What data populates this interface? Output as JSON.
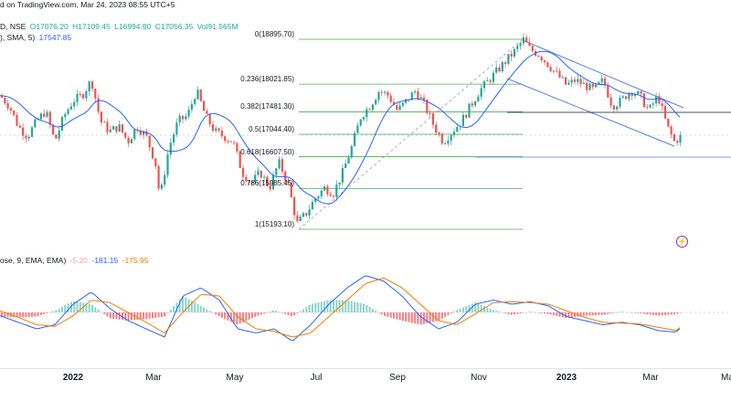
{
  "header": {
    "line1": "d on TradingView.com, Mar 24, 2023 08:55 UTC+5",
    "ohlc": {
      "o": "O17076.20",
      "h": "H17109.45",
      "l": "L16994.90",
      "c": "C17056.35",
      "vol": "Vol91.565M"
    },
    "line2a": "D, NSE",
    "line3": "), SMA, 5)",
    "sma_value": "17547.85",
    "macd_label": "ose, 9, EMA, EMA)",
    "macd_hist": "-5.20",
    "macd_line": "-181.15",
    "macd_signal": "-175.95"
  },
  "colors": {
    "up": "#26a69a",
    "down": "#ef5350",
    "sma": "#2962ff",
    "fib": "#4caf50",
    "channel": "#5b7de8",
    "macd_line": "#2962ff",
    "signal_line": "#f57c00"
  },
  "chart_data": {
    "type": "line",
    "x_ticks": [
      "2022",
      "Mar",
      "May",
      "Jul",
      "Sep",
      "Nov",
      "2023",
      "Mar",
      "Ma"
    ],
    "fib_levels": [
      {
        "label": "0(18895.70)",
        "value": 18895.7
      },
      {
        "label": "0.236(18021.85)",
        "value": 18021.85
      },
      {
        "label": "0.382(17481.30)",
        "value": 17481.3
      },
      {
        "label": "0.5(17044.40)",
        "value": 17044.4
      },
      {
        "label": "0.618(16607.50)",
        "value": 16607.5
      },
      {
        "label": "0.786(15985.45)",
        "value": 15985.45
      },
      {
        "label": "1(15193.10)",
        "value": 15193.1
      }
    ],
    "price_path": [
      [
        0,
        17800
      ],
      [
        10,
        17600
      ],
      [
        20,
        17200
      ],
      [
        30,
        17000
      ],
      [
        40,
        17300
      ],
      [
        50,
        17500
      ],
      [
        60,
        16900
      ],
      [
        70,
        17400
      ],
      [
        80,
        17700
      ],
      [
        90,
        17800
      ],
      [
        100,
        18100
      ],
      [
        110,
        17300
      ],
      [
        120,
        17100
      ],
      [
        130,
        17200
      ],
      [
        140,
        16900
      ],
      [
        150,
        17200
      ],
      [
        160,
        17000
      ],
      [
        170,
        16500
      ],
      [
        175,
        15800
      ],
      [
        185,
        16800
      ],
      [
        195,
        17300
      ],
      [
        205,
        17400
      ],
      [
        215,
        17900
      ],
      [
        225,
        17400
      ],
      [
        235,
        17100
      ],
      [
        245,
        17000
      ],
      [
        255,
        16900
      ],
      [
        265,
        16300
      ],
      [
        275,
        16100
      ],
      [
        285,
        16300
      ],
      [
        295,
        16000
      ],
      [
        305,
        16500
      ],
      [
        315,
        16100
      ],
      [
        325,
        15300
      ],
      [
        335,
        15500
      ],
      [
        345,
        15800
      ],
      [
        355,
        16000
      ],
      [
        365,
        15900
      ],
      [
        375,
        16300
      ],
      [
        385,
        16800
      ],
      [
        395,
        17400
      ],
      [
        405,
        17600
      ],
      [
        415,
        17900
      ],
      [
        425,
        17800
      ],
      [
        435,
        17500
      ],
      [
        445,
        17700
      ],
      [
        455,
        17900
      ],
      [
        465,
        17600
      ],
      [
        475,
        17200
      ],
      [
        485,
        16900
      ],
      [
        495,
        17100
      ],
      [
        505,
        17300
      ],
      [
        515,
        17600
      ],
      [
        525,
        17900
      ],
      [
        535,
        18100
      ],
      [
        545,
        18300
      ],
      [
        555,
        18500
      ],
      [
        565,
        18700
      ],
      [
        573,
        18890
      ],
      [
        580,
        18700
      ],
      [
        590,
        18600
      ],
      [
        600,
        18400
      ],
      [
        610,
        18200
      ],
      [
        620,
        18000
      ],
      [
        630,
        18100
      ],
      [
        640,
        18000
      ],
      [
        650,
        17900
      ],
      [
        660,
        18100
      ],
      [
        670,
        17600
      ],
      [
        680,
        17700
      ],
      [
        690,
        17900
      ],
      [
        700,
        17800
      ],
      [
        710,
        17500
      ],
      [
        720,
        17800
      ],
      [
        730,
        17200
      ],
      [
        738,
        16900
      ],
      [
        745,
        17000
      ]
    ],
    "macd": [
      [
        0,
        -40
      ],
      [
        20,
        -120
      ],
      [
        40,
        -200
      ],
      [
        60,
        -150
      ],
      [
        80,
        100
      ],
      [
        100,
        250
      ],
      [
        120,
        50
      ],
      [
        140,
        -100
      ],
      [
        160,
        -200
      ],
      [
        180,
        -300
      ],
      [
        200,
        200
      ],
      [
        220,
        300
      ],
      [
        240,
        150
      ],
      [
        260,
        -200
      ],
      [
        280,
        -250
      ],
      [
        300,
        -200
      ],
      [
        320,
        -350
      ],
      [
        340,
        -150
      ],
      [
        360,
        100
      ],
      [
        380,
        300
      ],
      [
        400,
        450
      ],
      [
        420,
        380
      ],
      [
        440,
        200
      ],
      [
        460,
        -50
      ],
      [
        480,
        -200
      ],
      [
        500,
        -120
      ],
      [
        520,
        100
      ],
      [
        540,
        150
      ],
      [
        560,
        100
      ],
      [
        580,
        130
      ],
      [
        600,
        80
      ],
      [
        620,
        -50
      ],
      [
        640,
        -100
      ],
      [
        660,
        -150
      ],
      [
        680,
        -120
      ],
      [
        700,
        -150
      ],
      [
        720,
        -220
      ],
      [
        740,
        -240
      ],
      [
        745,
        -181
      ]
    ],
    "signal": [
      [
        0,
        20
      ],
      [
        20,
        -60
      ],
      [
        40,
        -150
      ],
      [
        60,
        -170
      ],
      [
        80,
        -40
      ],
      [
        100,
        150
      ],
      [
        120,
        120
      ],
      [
        140,
        0
      ],
      [
        160,
        -120
      ],
      [
        180,
        -250
      ],
      [
        200,
        0
      ],
      [
        220,
        220
      ],
      [
        240,
        200
      ],
      [
        260,
        -50
      ],
      [
        280,
        -200
      ],
      [
        300,
        -230
      ],
      [
        320,
        -300
      ],
      [
        340,
        -250
      ],
      [
        360,
        -50
      ],
      [
        380,
        150
      ],
      [
        400,
        350
      ],
      [
        420,
        420
      ],
      [
        440,
        300
      ],
      [
        460,
        100
      ],
      [
        480,
        -100
      ],
      [
        500,
        -150
      ],
      [
        520,
        -20
      ],
      [
        540,
        120
      ],
      [
        560,
        130
      ],
      [
        580,
        120
      ],
      [
        600,
        100
      ],
      [
        620,
        20
      ],
      [
        640,
        -60
      ],
      [
        660,
        -120
      ],
      [
        680,
        -130
      ],
      [
        700,
        -140
      ],
      [
        720,
        -180
      ],
      [
        740,
        -220
      ],
      [
        745,
        -176
      ]
    ]
  }
}
